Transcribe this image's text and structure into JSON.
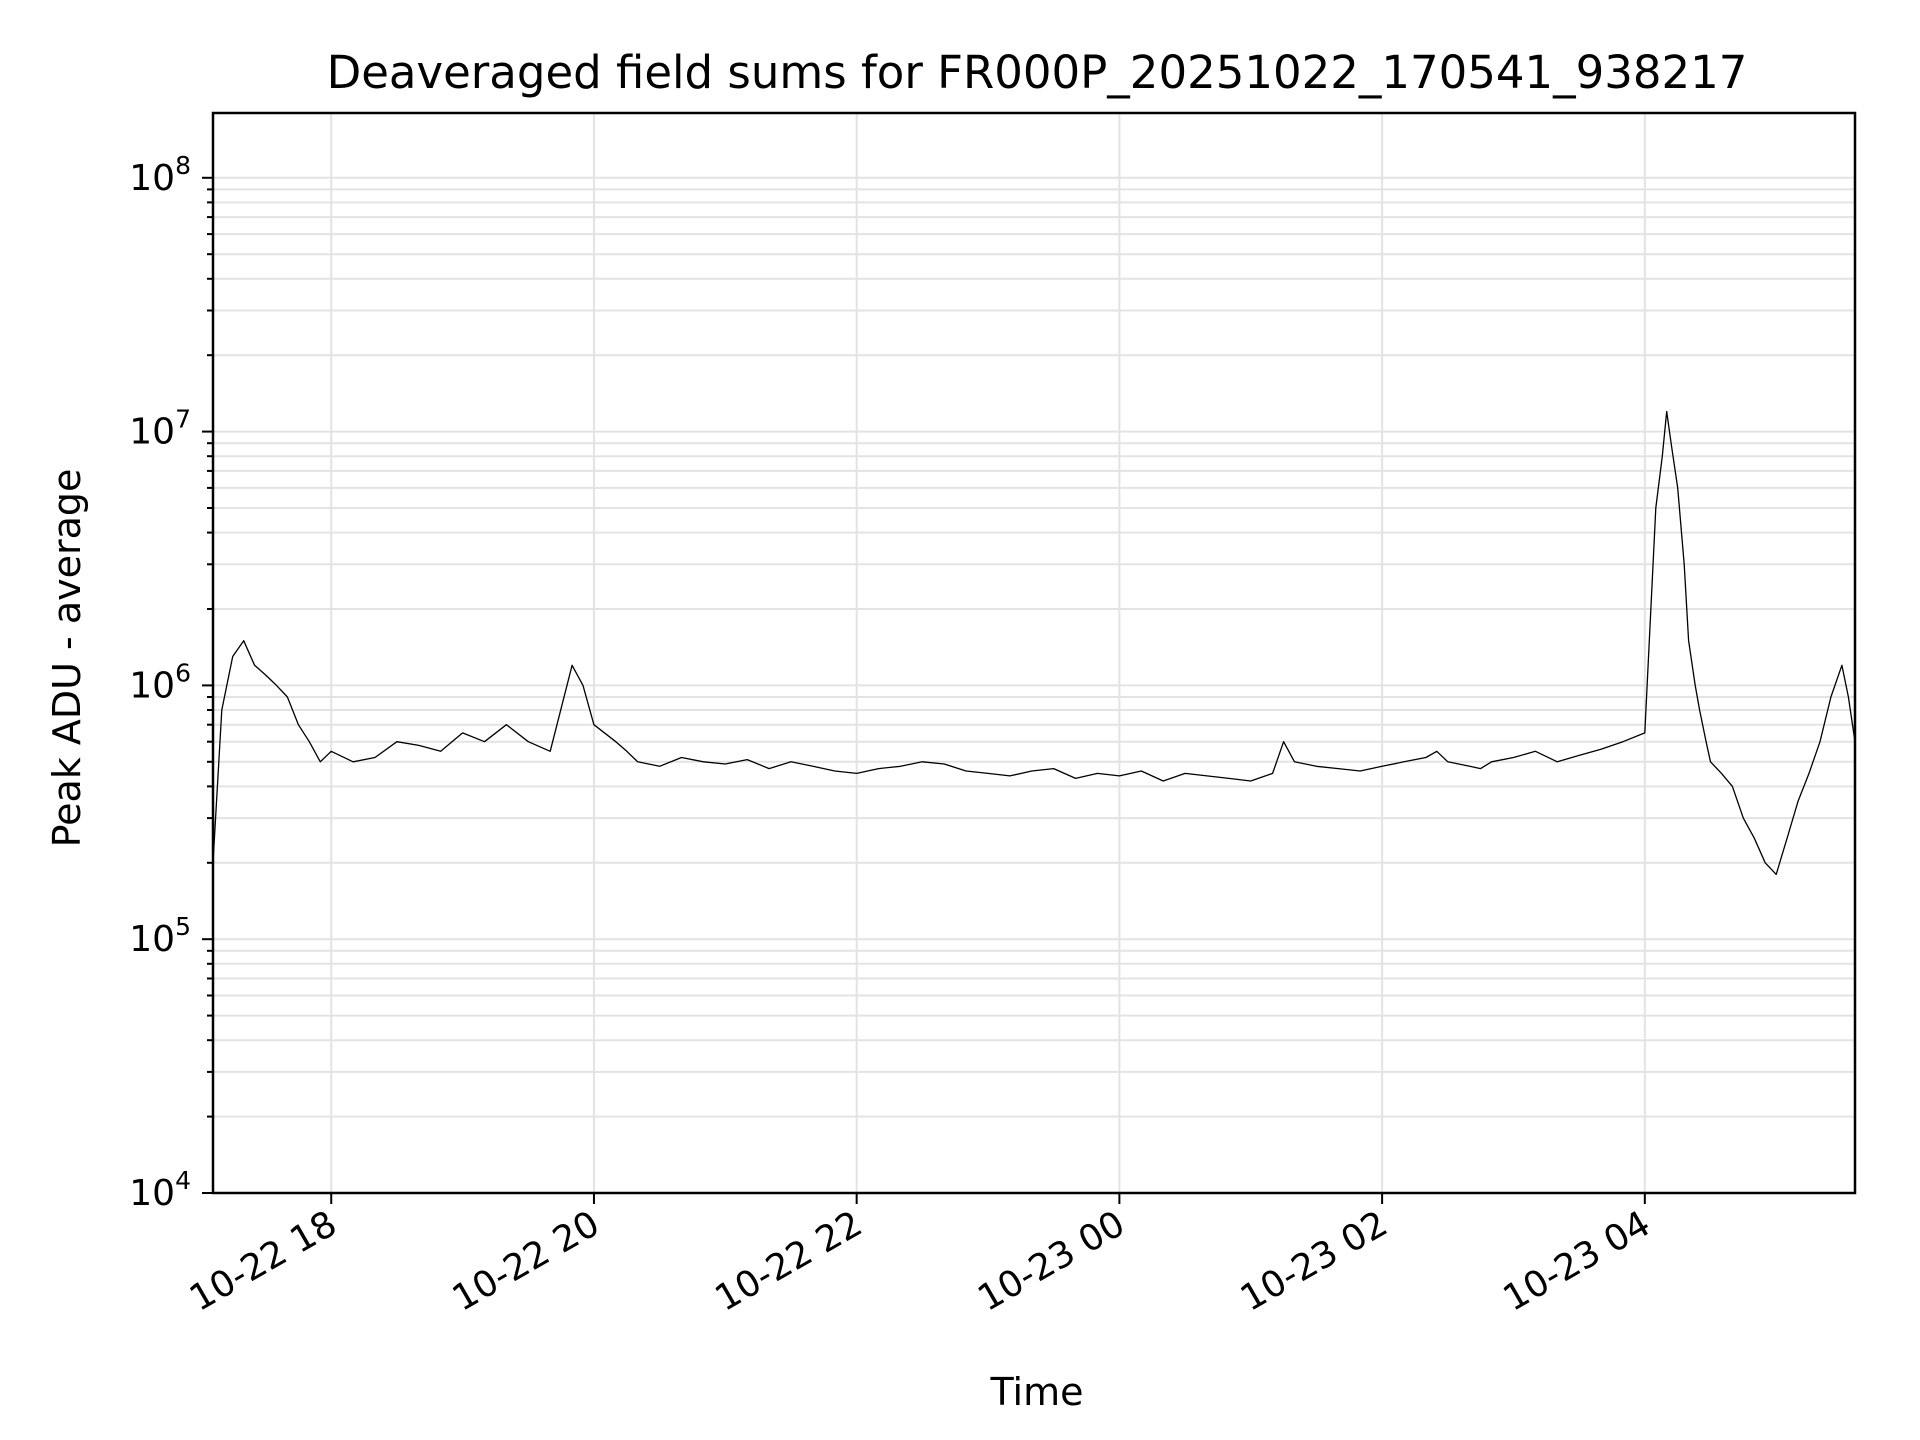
{
  "chart_data": {
    "type": "line",
    "title": "Deaveraged field sums for FR000P_20251022_170541_938217",
    "xlabel": "Time",
    "ylabel": "Peak ADU - average",
    "yscale": "log",
    "ylim": [
      10000,
      180000000
    ],
    "xlim": [
      "2025-10-22 17:06",
      "2025-10-23 05:36"
    ],
    "grid": true,
    "line_color": "#000000",
    "x_ticks": [
      {
        "label": "10-22 18",
        "time": "2025-10-22 18:00"
      },
      {
        "label": "10-22 20",
        "time": "2025-10-22 20:00"
      },
      {
        "label": "10-22 22",
        "time": "2025-10-22 22:00"
      },
      {
        "label": "10-23 00",
        "time": "2025-10-23 00:00"
      },
      {
        "label": "10-23 02",
        "time": "2025-10-23 02:00"
      },
      {
        "label": "10-23 04",
        "time": "2025-10-23 04:00"
      }
    ],
    "y_ticks": [
      {
        "base": "10",
        "exp": "4",
        "value": 10000
      },
      {
        "base": "10",
        "exp": "5",
        "value": 100000
      },
      {
        "base": "10",
        "exp": "6",
        "value": 1000000
      },
      {
        "base": "10",
        "exp": "7",
        "value": 10000000
      },
      {
        "base": "10",
        "exp": "8",
        "value": 100000000
      }
    ],
    "series": [
      {
        "x": [
          "2025-10-22 17:06",
          "2025-10-22 17:10",
          "2025-10-22 17:15",
          "2025-10-22 17:20",
          "2025-10-22 17:25",
          "2025-10-22 17:30",
          "2025-10-22 17:35",
          "2025-10-22 17:40",
          "2025-10-22 17:45",
          "2025-10-22 17:50",
          "2025-10-22 17:55",
          "2025-10-22 18:00",
          "2025-10-22 18:10",
          "2025-10-22 18:20",
          "2025-10-22 18:30",
          "2025-10-22 18:40",
          "2025-10-22 18:50",
          "2025-10-22 19:00",
          "2025-10-22 19:10",
          "2025-10-22 19:20",
          "2025-10-22 19:30",
          "2025-10-22 19:40",
          "2025-10-22 19:50",
          "2025-10-22 19:55",
          "2025-10-22 20:00",
          "2025-10-22 20:10",
          "2025-10-22 20:15",
          "2025-10-22 20:20",
          "2025-10-22 20:30",
          "2025-10-22 20:40",
          "2025-10-22 20:50",
          "2025-10-22 21:00",
          "2025-10-22 21:10",
          "2025-10-22 21:20",
          "2025-10-22 21:30",
          "2025-10-22 21:40",
          "2025-10-22 21:50",
          "2025-10-22 22:00",
          "2025-10-22 22:10",
          "2025-10-22 22:20",
          "2025-10-22 22:30",
          "2025-10-22 22:40",
          "2025-10-22 22:50",
          "2025-10-22 23:00",
          "2025-10-22 23:10",
          "2025-10-22 23:20",
          "2025-10-22 23:30",
          "2025-10-22 23:40",
          "2025-10-22 23:50",
          "2025-10-23 00:00",
          "2025-10-23 00:10",
          "2025-10-23 00:20",
          "2025-10-23 00:30",
          "2025-10-23 00:40",
          "2025-10-23 00:50",
          "2025-10-23 01:00",
          "2025-10-23 01:10",
          "2025-10-23 01:15",
          "2025-10-23 01:20",
          "2025-10-23 01:30",
          "2025-10-23 01:40",
          "2025-10-23 01:50",
          "2025-10-23 02:00",
          "2025-10-23 02:10",
          "2025-10-23 02:20",
          "2025-10-23 02:25",
          "2025-10-23 02:30",
          "2025-10-23 02:40",
          "2025-10-23 02:45",
          "2025-10-23 02:50",
          "2025-10-23 03:00",
          "2025-10-23 03:10",
          "2025-10-23 03:20",
          "2025-10-23 03:30",
          "2025-10-23 03:40",
          "2025-10-23 03:50",
          "2025-10-23 04:00",
          "2025-10-23 04:05",
          "2025-10-23 04:08",
          "2025-10-23 04:10",
          "2025-10-23 04:12",
          "2025-10-23 04:15",
          "2025-10-23 04:18",
          "2025-10-23 04:20",
          "2025-10-23 04:23",
          "2025-10-23 04:25",
          "2025-10-23 04:28",
          "2025-10-23 04:30",
          "2025-10-23 04:35",
          "2025-10-23 04:40",
          "2025-10-23 04:45",
          "2025-10-23 04:50",
          "2025-10-23 04:55",
          "2025-10-23 05:00",
          "2025-10-23 05:05",
          "2025-10-23 05:10",
          "2025-10-23 05:15",
          "2025-10-23 05:20",
          "2025-10-23 05:25",
          "2025-10-23 05:30",
          "2025-10-23 05:33",
          "2025-10-23 05:36"
        ],
        "y": [
          200000,
          800000,
          1300000,
          1500000,
          1200000,
          1100000,
          1000000,
          900000,
          700000,
          600000,
          500000,
          550000,
          500000,
          520000,
          600000,
          580000,
          550000,
          650000,
          600000,
          700000,
          600000,
          550000,
          1200000,
          1000000,
          700000,
          600000,
          550000,
          500000,
          480000,
          520000,
          500000,
          490000,
          510000,
          470000,
          500000,
          480000,
          460000,
          450000,
          470000,
          480000,
          500000,
          490000,
          460000,
          450000,
          440000,
          460000,
          470000,
          430000,
          450000,
          440000,
          460000,
          420000,
          450000,
          440000,
          430000,
          420000,
          450000,
          600000,
          500000,
          480000,
          470000,
          460000,
          480000,
          500000,
          520000,
          550000,
          500000,
          480000,
          470000,
          500000,
          520000,
          550000,
          500000,
          530000,
          560000,
          600000,
          650000,
          5000000,
          8000000,
          12000000,
          9000000,
          6000000,
          3000000,
          1500000,
          1000000,
          800000,
          600000,
          500000,
          450000,
          400000,
          300000,
          250000,
          200000,
          180000,
          250000,
          350000,
          450000,
          600000,
          900000,
          1200000,
          900000,
          600000
        ]
      }
    ]
  }
}
